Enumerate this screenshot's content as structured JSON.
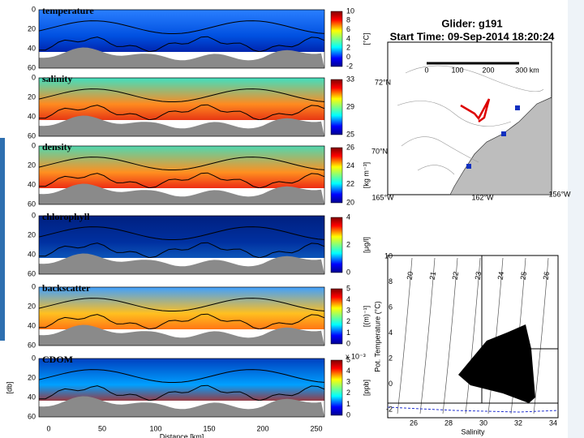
{
  "panels": [
    {
      "title": "temperature",
      "colorbar_ticks": [
        "10",
        "8",
        "6",
        "4",
        "2",
        "0",
        "-2"
      ],
      "unit": "[°C]"
    },
    {
      "title": "salinity",
      "colorbar_ticks": [
        "33",
        "29",
        "25"
      ]
    },
    {
      "title": "density",
      "colorbar_ticks": [
        "26",
        "24",
        "22",
        "20"
      ],
      "unit": "[kg m⁻³]"
    },
    {
      "title": "chlorophyll",
      "colorbar_ticks": [
        "4",
        "2",
        "0"
      ],
      "unit": "[μg/l]"
    },
    {
      "title": "backscatter",
      "colorbar_ticks": [
        "5",
        "4",
        "3",
        "2",
        "1",
        "0"
      ],
      "unit": "[(m)⁻¹]"
    },
    {
      "title": "CDOM",
      "colorbar_ticks": [
        "5",
        "4",
        "3",
        "2",
        "1",
        "0"
      ],
      "unit": "[ppb]",
      "scale": "x 10⁻³"
    }
  ],
  "depth_ticks": [
    "0",
    "20",
    "40",
    "60"
  ],
  "depth_label": "[db]",
  "distance_ticks": [
    "0",
    "50",
    "100",
    "150",
    "200",
    "250"
  ],
  "distance_label": "Distance [km]",
  "map": {
    "title": "Glider: g191",
    "start_time": "Start Time: 09-Sep-2014 18:20:24",
    "scale_ticks": [
      "0",
      "100",
      "200",
      "300 km"
    ],
    "lat_labels": [
      "72°N",
      "70°N"
    ],
    "lon_labels": [
      "165°W",
      "162°W",
      "156°W"
    ]
  },
  "ts_diagram": {
    "xlabel": "Salinity",
    "ylabel": "Pot. Temperature (°C)",
    "xticks": [
      "26",
      "28",
      "30",
      "32",
      "34"
    ],
    "yticks": [
      "10",
      "8",
      "6",
      "4",
      "2",
      "0",
      "-2"
    ],
    "isopycnal_labels": [
      "20",
      "21",
      "22",
      "23",
      "24",
      "25",
      "26"
    ]
  }
}
